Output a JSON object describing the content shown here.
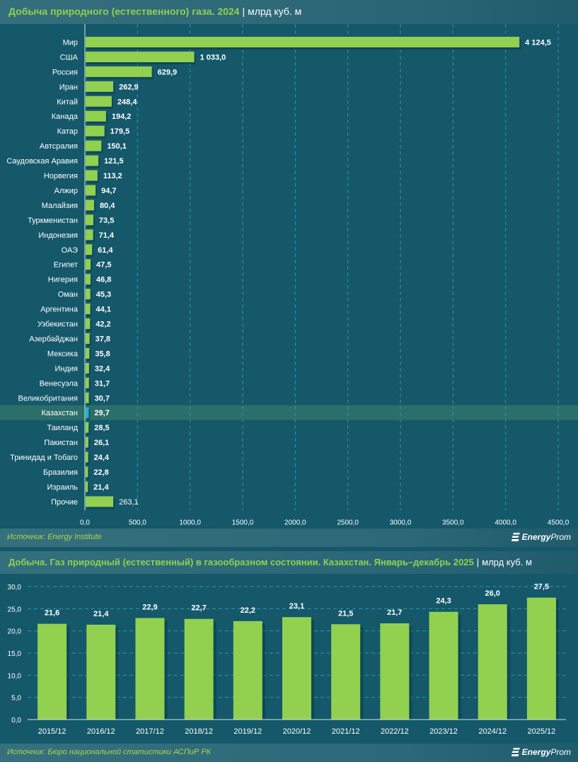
{
  "chart1_header": {
    "title": "Добыча природного (естественного) газа. 2024",
    "unit": "млрд куб. м"
  },
  "chart1_source": {
    "text": "Источник: Energy Institute",
    "logo_bold": "Energy",
    "logo_rest": "Prom"
  },
  "chart2_header": {
    "title": "Добыча. Газ природный (естественный) в газообразном состоянии. Казахстан. Январь–декабрь 2025",
    "unit": "млрд куб. м"
  },
  "chart2_source": {
    "text": "Источник: Бюро национальной статистики АСПиР РК",
    "logo_bold": "Energy",
    "logo_rest": "Prom"
  },
  "colors": {
    "background": "#14586a",
    "bar": "#92d050",
    "highlight_bar": "#1fb4d8",
    "highlight_row": "#2c6e6a",
    "title": "#8fd14f",
    "source_text": "#a6d84a",
    "grid": "#2f93b0"
  },
  "chart_data": [
    {
      "type": "bar",
      "orientation": "horizontal",
      "title": "Добыча природного (естественного) газа. 2024",
      "unit": "млрд куб. м",
      "xlabel": "",
      "ylabel": "",
      "xlim": [
        0,
        4500
      ],
      "xticks": [
        0,
        500,
        1000,
        1500,
        2000,
        2500,
        3000,
        3500,
        4000,
        4500
      ],
      "xtick_labels": [
        "0,0",
        "500,0",
        "1000,0",
        "1500,0",
        "2000,0",
        "2500,0",
        "3000,0",
        "3500,0",
        "4000,0",
        "4500,0"
      ],
      "grid": "vertical dashed",
      "highlight": "Казахстан",
      "categories": [
        "Мир",
        "США",
        "Россия",
        "Иран",
        "Китай",
        "Канада",
        "Катар",
        "Автсралия",
        "Саудовская Аравия",
        "Норвегия",
        "Алжир",
        "Малайзия",
        "Туркменистан",
        "Индонезия",
        "ОАЭ",
        "Египет",
        "Нигерия",
        "Оман",
        "Аргентина",
        "Узбекистан",
        "Азербайджан",
        "Мексика",
        "Индия",
        "Венесуэла",
        "Великобритания",
        "Казахстан",
        "Таиланд",
        "Пакистан",
        "Тринидад и Тобаго",
        "Бразилия",
        "Израиль",
        "Прочие"
      ],
      "values": [
        4124.5,
        1033.0,
        629.9,
        262.9,
        248.4,
        194.2,
        179.5,
        150.1,
        121.5,
        113.2,
        94.7,
        80.4,
        73.5,
        71.4,
        61.4,
        47.5,
        46.8,
        45.3,
        44.1,
        42.2,
        37.8,
        35.8,
        32.4,
        31.7,
        30.7,
        29.7,
        28.5,
        26.1,
        24.4,
        22.8,
        21.4,
        263.1
      ],
      "value_labels": [
        "4 124,5",
        "1 033,0",
        "629,9",
        "262,9",
        "248,4",
        "194,2",
        "179,5",
        "150,1",
        "121,5",
        "113,2",
        "94,7",
        "80,4",
        "73,5",
        "71,4",
        "61,4",
        "47,5",
        "46,8",
        "45,3",
        "44,1",
        "42,2",
        "37,8",
        "35,8",
        "32,4",
        "31,7",
        "30,7",
        "29,7",
        "28,5",
        "26,1",
        "24,4",
        "22,8",
        "21,4",
        "263,1"
      ]
    },
    {
      "type": "bar",
      "orientation": "vertical",
      "title": "Добыча. Газ природный (естественный) в газообразном состоянии. Казахстан. Январь–декабрь 2025",
      "unit": "млрд куб. м",
      "xlabel": "",
      "ylabel": "",
      "ylim": [
        0,
        30
      ],
      "yticks": [
        0,
        5,
        10,
        15,
        20,
        25,
        30
      ],
      "ytick_labels": [
        "0,0",
        "5,0",
        "10,0",
        "15,0",
        "20,0",
        "25,0",
        "30,0"
      ],
      "grid": "horizontal dashed",
      "categories": [
        "2015/12",
        "2016/12",
        "2017/12",
        "2018/12",
        "2019/12",
        "2020/12",
        "2021/12",
        "2022/12",
        "2023/12",
        "2024/12",
        "2025/12"
      ],
      "values": [
        21.6,
        21.4,
        22.9,
        22.7,
        22.2,
        23.1,
        21.5,
        21.7,
        24.3,
        26.0,
        27.5
      ],
      "value_labels": [
        "21,6",
        "21,4",
        "22,9",
        "22,7",
        "22,2",
        "23,1",
        "21,5",
        "21,7",
        "24,3",
        "26,0",
        "27,5"
      ]
    }
  ]
}
